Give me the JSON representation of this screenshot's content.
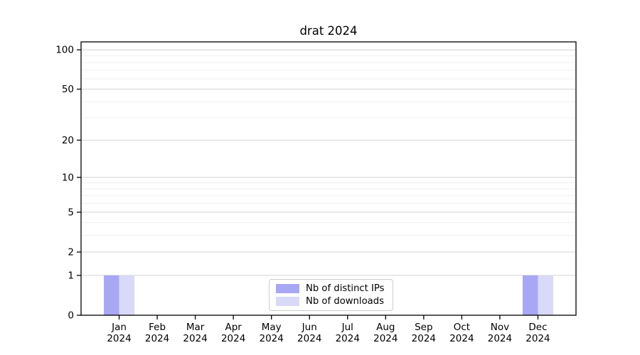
{
  "chart_data": {
    "type": "bar",
    "title": "drat 2024",
    "categories": [
      "Jan",
      "Feb",
      "Mar",
      "Apr",
      "May",
      "Jun",
      "Jul",
      "Aug",
      "Sep",
      "Oct",
      "Nov",
      "Dec"
    ],
    "category_year": "2024",
    "series": [
      {
        "name": "Nb of distinct IPs",
        "color": "#a7a7f4",
        "values": [
          1,
          0,
          0,
          0,
          0,
          0,
          0,
          0,
          0,
          0,
          0,
          1
        ]
      },
      {
        "name": "Nb of downloads",
        "color": "#d9d9f8",
        "values": [
          1,
          0,
          0,
          0,
          0,
          0,
          0,
          0,
          0,
          0,
          0,
          1
        ]
      }
    ],
    "xlabel": "",
    "ylabel": "",
    "yaxis": {
      "scale": "log1p",
      "tick_values": [
        0,
        1,
        2,
        5,
        10,
        20,
        50,
        100
      ],
      "minor_gridline_values": [
        3,
        4,
        6,
        7,
        8,
        9,
        30,
        40,
        60,
        70,
        80,
        90
      ],
      "max": 115
    },
    "grid": {
      "major_color": "#d4d4d4",
      "minor_color": "#f0f0f0"
    },
    "axis_color": "#000000",
    "legend": {
      "position": "bottom-center"
    }
  }
}
